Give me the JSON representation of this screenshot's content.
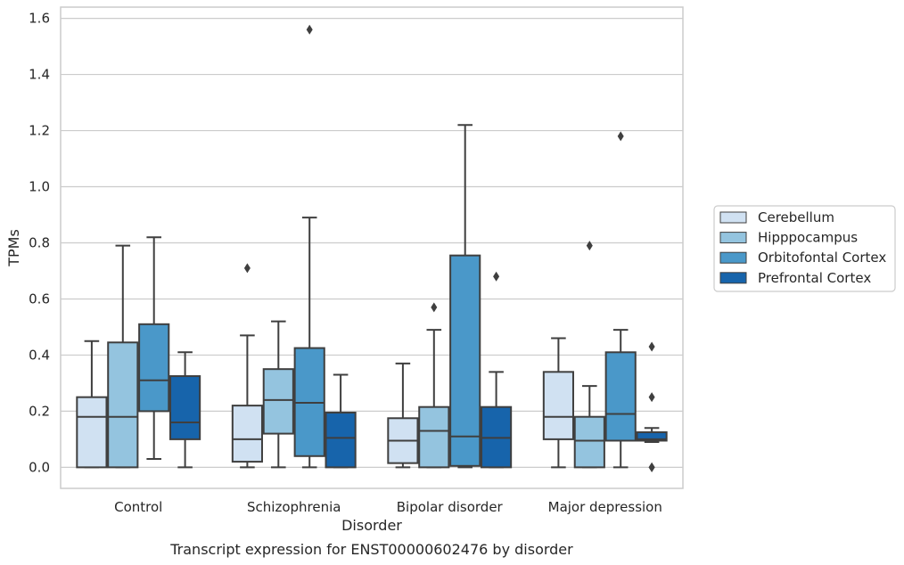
{
  "chart_data": {
    "type": "box",
    "xlabel": "Disorder",
    "ylabel": "TPMs",
    "caption": "Transcript expression for ENST00000602476 by disorder",
    "ylim": [
      -0.075,
      1.64
    ],
    "yticks": [
      "0.0",
      "0.2",
      "0.4",
      "0.6",
      "0.8",
      "1.0",
      "1.2",
      "1.4",
      "1.6"
    ],
    "grid": true,
    "legend_position": "right",
    "categories": [
      "Control",
      "Schizophrenia",
      "Bipolar disorder",
      "Major depression"
    ],
    "series": [
      {
        "name": "Cerebellum",
        "color": "#d0e1f2",
        "boxes": [
          {
            "whislo": 0.0,
            "q1": 0.0,
            "med": 0.18,
            "q3": 0.25,
            "whishi": 0.45,
            "fliers": []
          },
          {
            "whislo": 0.0,
            "q1": 0.02,
            "med": 0.1,
            "q3": 0.22,
            "whishi": 0.47,
            "fliers": [
              0.71
            ]
          },
          {
            "whislo": 0.0,
            "q1": 0.015,
            "med": 0.095,
            "q3": 0.175,
            "whishi": 0.37,
            "fliers": []
          },
          {
            "whislo": 0.0,
            "q1": 0.1,
            "med": 0.18,
            "q3": 0.34,
            "whishi": 0.46,
            "fliers": []
          }
        ]
      },
      {
        "name": "Hipppocampus",
        "color": "#94c4df",
        "boxes": [
          {
            "whislo": 0.0,
            "q1": 0.0,
            "med": 0.18,
            "q3": 0.445,
            "whishi": 0.79,
            "fliers": []
          },
          {
            "whislo": 0.0,
            "q1": 0.12,
            "med": 0.24,
            "q3": 0.35,
            "whishi": 0.52,
            "fliers": []
          },
          {
            "whislo": 0.0,
            "q1": 0.0,
            "med": 0.13,
            "q3": 0.215,
            "whishi": 0.49,
            "fliers": [
              0.57
            ]
          },
          {
            "whislo": 0.0,
            "q1": 0.0,
            "med": 0.095,
            "q3": 0.18,
            "whishi": 0.29,
            "fliers": [
              0.79
            ]
          }
        ]
      },
      {
        "name": "Orbitofontal Cortex",
        "color": "#4a98c9",
        "boxes": [
          {
            "whislo": 0.03,
            "q1": 0.2,
            "med": 0.31,
            "q3": 0.51,
            "whishi": 0.82,
            "fliers": []
          },
          {
            "whislo": 0.0,
            "q1": 0.04,
            "med": 0.23,
            "q3": 0.425,
            "whishi": 0.89,
            "fliers": [
              1.56
            ]
          },
          {
            "whislo": 0.0,
            "q1": 0.005,
            "med": 0.11,
            "q3": 0.755,
            "whishi": 1.22,
            "fliers": []
          },
          {
            "whislo": 0.0,
            "q1": 0.095,
            "med": 0.19,
            "q3": 0.41,
            "whishi": 0.49,
            "fliers": [
              1.18
            ]
          }
        ]
      },
      {
        "name": "Prefrontal Cortex",
        "color": "#1764ab",
        "boxes": [
          {
            "whislo": 0.0,
            "q1": 0.1,
            "med": 0.16,
            "q3": 0.325,
            "whishi": 0.41,
            "fliers": []
          },
          {
            "whislo": 0.0,
            "q1": 0.0,
            "med": 0.105,
            "q3": 0.195,
            "whishi": 0.33,
            "fliers": []
          },
          {
            "whislo": 0.0,
            "q1": 0.0,
            "med": 0.105,
            "q3": 0.215,
            "whishi": 0.34,
            "fliers": [
              0.68
            ]
          },
          {
            "whislo": 0.09,
            "q1": 0.095,
            "med": 0.1,
            "q3": 0.125,
            "whishi": 0.14,
            "fliers": [
              0.43,
              0.25,
              0.0,
              0.0
            ]
          }
        ]
      }
    ]
  }
}
